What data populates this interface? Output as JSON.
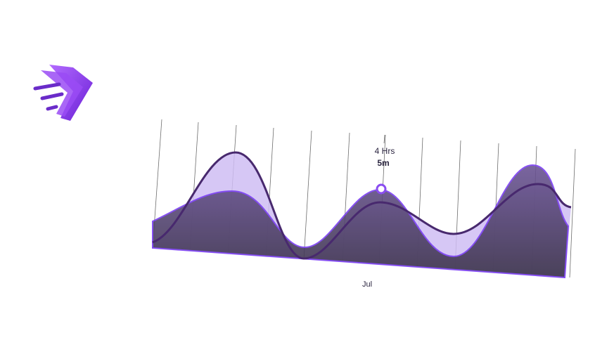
{
  "tooltip": {
    "hours": "4 Hrs",
    "minutes": "5m"
  },
  "x_label": "Jul"
}
